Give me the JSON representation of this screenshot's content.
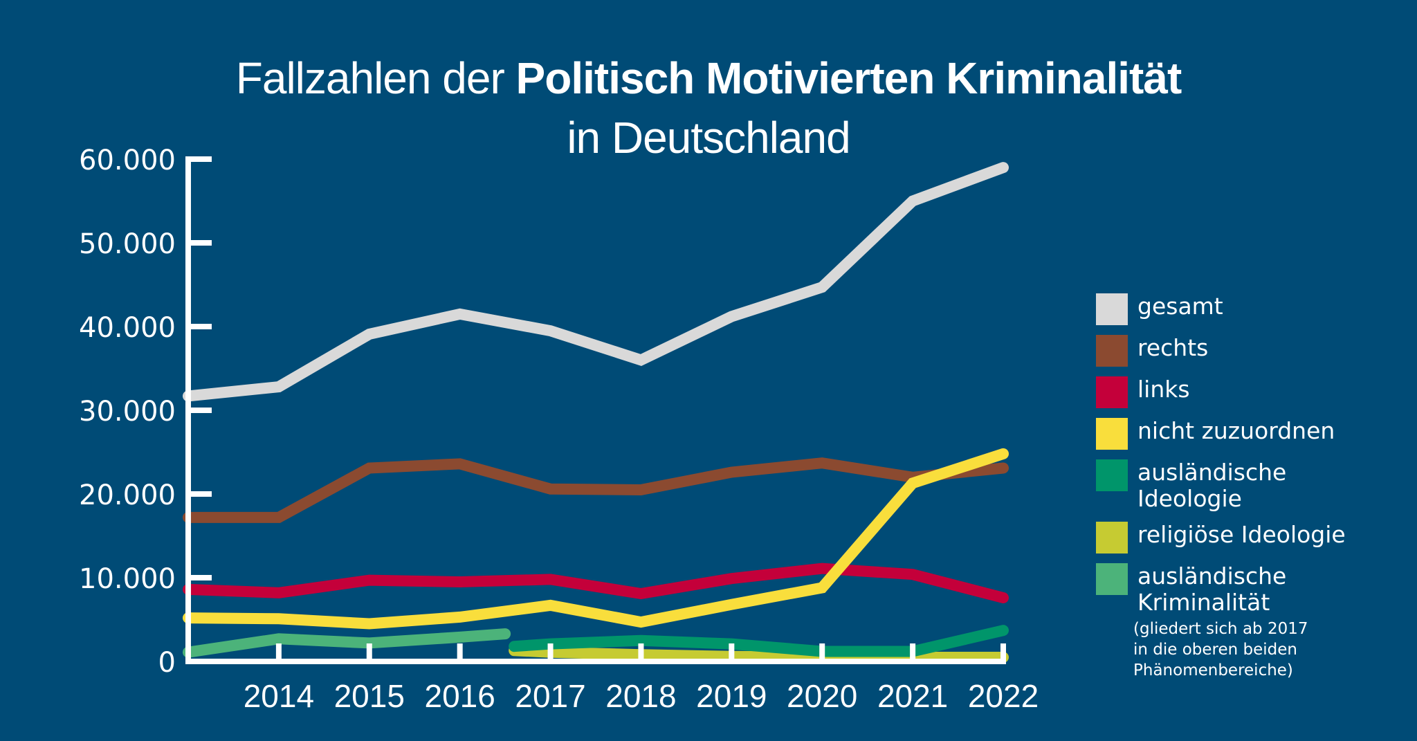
{
  "title": {
    "prefix": "Fallzahlen der ",
    "bold": "Politisch Motivierten Kriminalität",
    "line2": "in Deutschland"
  },
  "colors": {
    "background": "#004B76",
    "axis": "#FFFFFF"
  },
  "chart_data": {
    "type": "line",
    "title": "Fallzahlen der Politisch Motivierten Kriminalität in Deutschland",
    "xlabel": "",
    "ylabel": "",
    "x_range": [
      2013,
      2022
    ],
    "ylim": [
      0,
      60000
    ],
    "y_ticks": [
      0,
      10000,
      20000,
      30000,
      40000,
      50000,
      60000
    ],
    "y_tick_labels": [
      "0",
      "10.000",
      "20.000",
      "30.000",
      "40.000",
      "50.000",
      "60.000"
    ],
    "x_ticks": [
      2014,
      2015,
      2016,
      2017,
      2018,
      2019,
      2020,
      2021,
      2022
    ],
    "x_tick_labels": [
      "2014",
      "2015",
      "2016",
      "2017",
      "2018",
      "2019",
      "2020",
      "2021",
      "2022"
    ],
    "grid": false,
    "legend_position": "right",
    "series": [
      {
        "name": "gesamt",
        "color": "#D9D9D9",
        "x": [
          2013,
          2014,
          2015,
          2016,
          2017,
          2018,
          2019,
          2020,
          2021,
          2022
        ],
        "values": [
          31700,
          32800,
          39100,
          41500,
          39500,
          36000,
          41200,
          44700,
          55000,
          59000
        ]
      },
      {
        "name": "rechts",
        "color": "#8B4A30",
        "x": [
          2013,
          2014,
          2015,
          2016,
          2017,
          2018,
          2019,
          2020,
          2021,
          2022
        ],
        "values": [
          17200,
          17200,
          23100,
          23600,
          20600,
          20500,
          22600,
          23700,
          22000,
          23100
        ]
      },
      {
        "name": "links",
        "color": "#C4003A",
        "x": [
          2013,
          2014,
          2015,
          2016,
          2017,
          2018,
          2019,
          2020,
          2021,
          2022
        ],
        "values": [
          8600,
          8200,
          9700,
          9500,
          9800,
          8100,
          9900,
          11100,
          10400,
          7600
        ]
      },
      {
        "name": "nicht zuzuordnen",
        "color": "#F9DE3C",
        "x": [
          2013,
          2014,
          2015,
          2016,
          2017,
          2018,
          2019,
          2020,
          2021,
          2022
        ],
        "values": [
          5200,
          5100,
          4500,
          5300,
          6700,
          4700,
          6800,
          8800,
          21300,
          24800
        ]
      },
      {
        "name": "religiöse Ideologie",
        "color": "#C6CB32",
        "x": [
          2016.6,
          2017,
          2018,
          2019,
          2020,
          2021,
          2022
        ],
        "values": [
          1300,
          1100,
          800,
          600,
          500,
          500,
          500
        ]
      },
      {
        "name": "ausländische Ideologie",
        "color": "#00956A",
        "x": [
          2016.6,
          2017,
          2018,
          2019,
          2020,
          2021,
          2022
        ],
        "values": [
          1800,
          2100,
          2500,
          2100,
          1200,
          1200,
          3700
        ]
      },
      {
        "name": "ausländische Kriminalität",
        "color": "#4CB37A",
        "x": [
          2013,
          2014,
          2015,
          2016,
          2016.5
        ],
        "values": [
          1100,
          2700,
          2200,
          2900,
          3300
        ]
      }
    ]
  },
  "legend": {
    "items": [
      {
        "label": "gesamt",
        "color": "#D9D9D9"
      },
      {
        "label": "rechts",
        "color": "#8B4A30"
      },
      {
        "label": "links",
        "color": "#C4003A"
      },
      {
        "label": "nicht zuzuordnen",
        "color": "#F9DE3C"
      },
      {
        "label": "ausländische Ideologie",
        "line1": "ausländische",
        "line2": "Ideologie",
        "color": "#00956A"
      },
      {
        "label": "religiöse Ideologie",
        "color": "#C6CB32"
      },
      {
        "label": "ausländische Kriminalität",
        "line1": "ausländische",
        "line2": "Kriminalität",
        "color": "#4CB37A",
        "note1": "(gliedert sich ab 2017",
        "note2": "in die oberen beiden",
        "note3": "Phänomenbereiche)"
      }
    ]
  }
}
